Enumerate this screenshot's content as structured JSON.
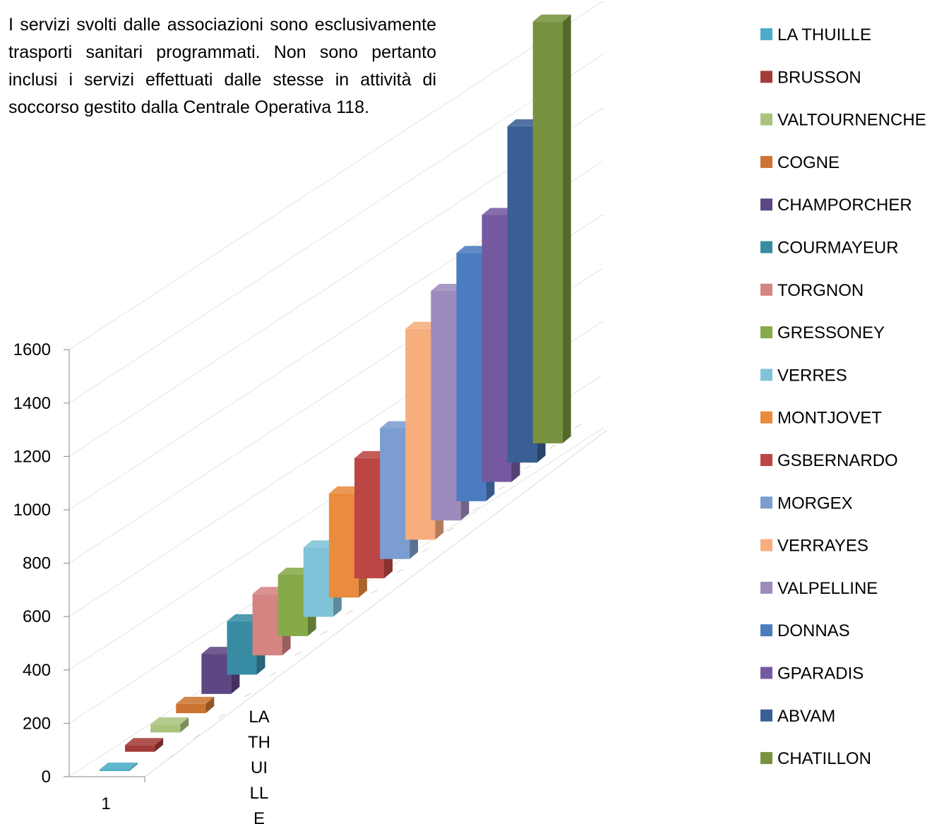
{
  "intro": {
    "text": "I servizi svolti dalle associazioni sono esclusivamente trasporti sanitari programmati. Non sono pertanto inclusi i servizi effettuati dalle stesse in attività di soccorso gestito dalla Centrale Operativa 118."
  },
  "chart_data": {
    "type": "bar",
    "style": "3d-column",
    "categories": [
      "1"
    ],
    "category_axis_labels": [
      "1",
      "LA THUILLE"
    ],
    "y_ticks": [
      "0",
      "200",
      "400",
      "600",
      "800",
      "1000",
      "1200",
      "1400",
      "1600"
    ],
    "ylim": [
      0,
      1600
    ],
    "grid": true,
    "legend_position": "right",
    "series": [
      {
        "name": "LA THUILLE",
        "values": [
          5
        ],
        "color": "#4aacc6"
      },
      {
        "name": "BRUSSON",
        "values": [
          25
        ],
        "color": "#a33b38"
      },
      {
        "name": "VALTOURNENCHE",
        "values": [
          30
        ],
        "color": "#aac47e"
      },
      {
        "name": "COGNE",
        "values": [
          35
        ],
        "color": "#cd7432"
      },
      {
        "name": "CHAMPORCHER",
        "values": [
          150
        ],
        "color": "#5e4682"
      },
      {
        "name": "COURMAYEUR",
        "values": [
          200
        ],
        "color": "#378ca4"
      },
      {
        "name": "TORGNON",
        "values": [
          230
        ],
        "color": "#d58482"
      },
      {
        "name": "GRESSONEY",
        "values": [
          230
        ],
        "color": "#86a94a"
      },
      {
        "name": "VERRES",
        "values": [
          260
        ],
        "color": "#80c3d8"
      },
      {
        "name": "MONTJOVET",
        "values": [
          390
        ],
        "color": "#ea8b3d"
      },
      {
        "name": "GSBERNARDO",
        "values": [
          450
        ],
        "color": "#bc4643"
      },
      {
        "name": "MORGEX",
        "values": [
          490
        ],
        "color": "#7c9dcf"
      },
      {
        "name": "VERRAYES",
        "values": [
          790
        ],
        "color": "#f8ad7d"
      },
      {
        "name": "VALPELLINE",
        "values": [
          860
        ],
        "color": "#9d8bbd"
      },
      {
        "name": "DONNAS",
        "values": [
          930
        ],
        "color": "#4a7cbf"
      },
      {
        "name": "GPARADIS",
        "values": [
          1000
        ],
        "color": "#7559a0"
      },
      {
        "name": "ABVAM",
        "values": [
          1260
        ],
        "color": "#3a5f94"
      },
      {
        "name": "CHATILLON",
        "values": [
          1580
        ],
        "color": "#78923f"
      }
    ]
  }
}
